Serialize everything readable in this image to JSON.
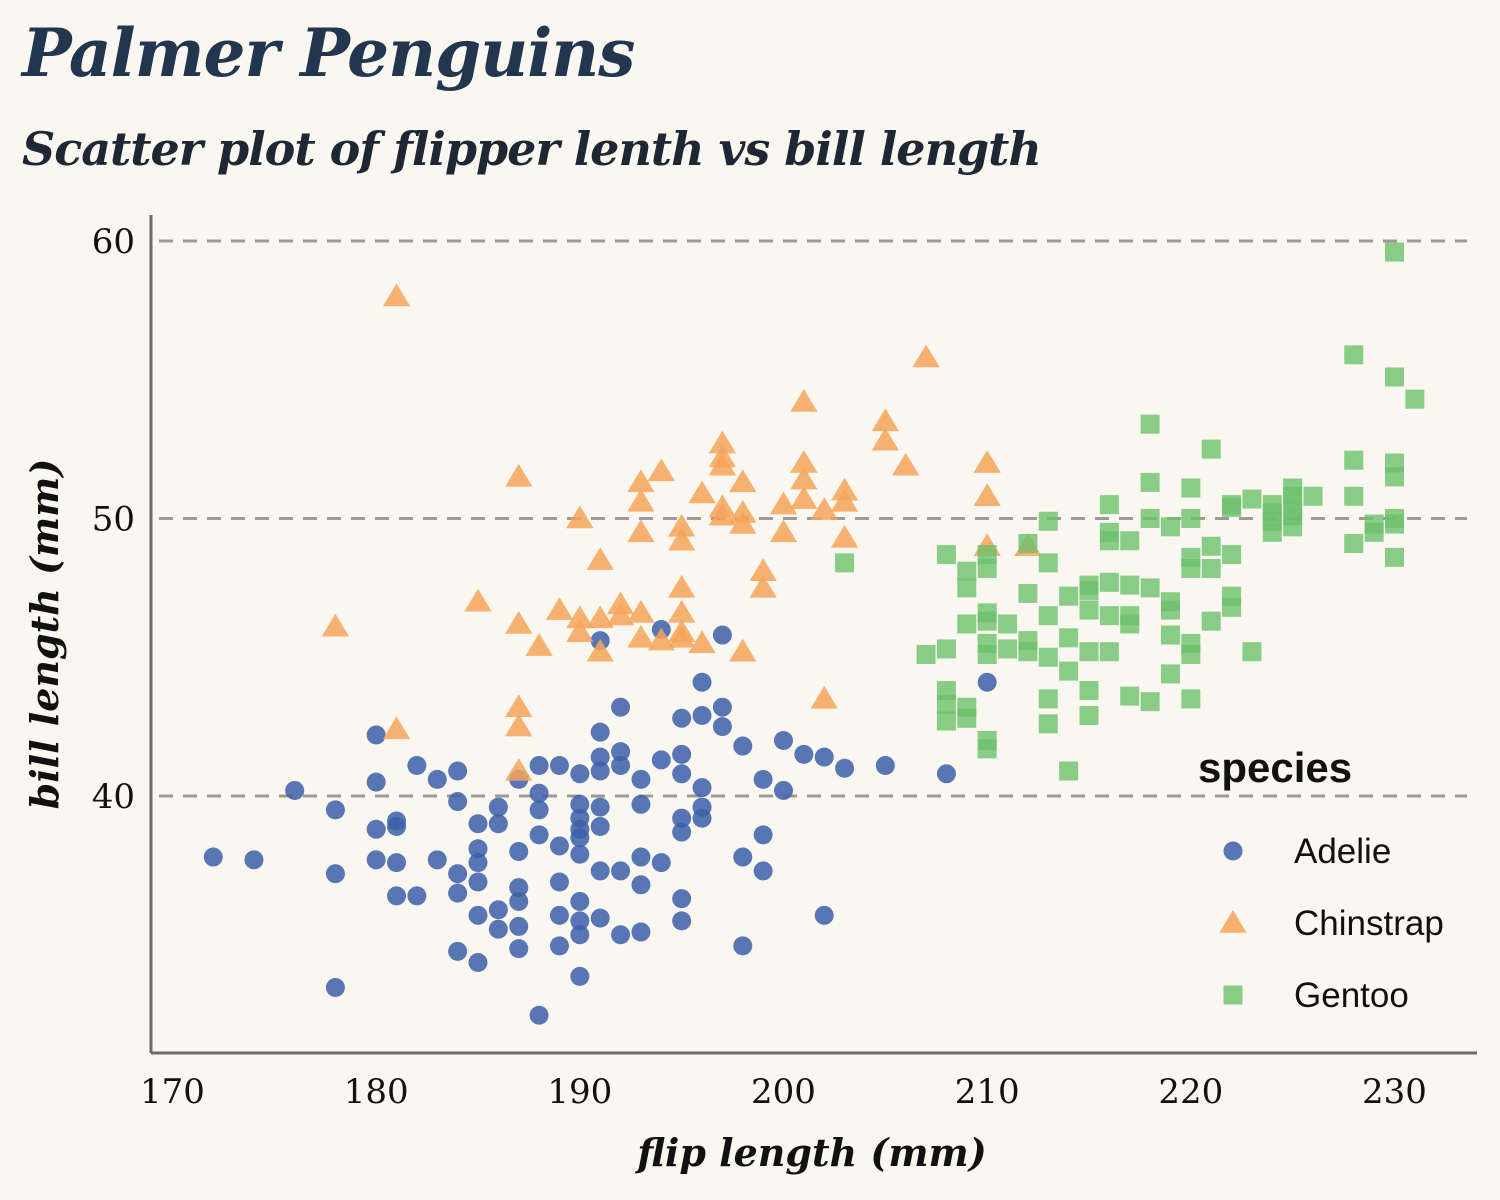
{
  "chart_data": {
    "type": "scatter",
    "title": "Palmer Penguins",
    "subtitle": "Scatter plot of flipper lenth vs bill length",
    "xlabel": "flip length (mm)",
    "ylabel": "bill length (mm)",
    "xlim": [
      167,
      234
    ],
    "ylim": [
      31,
      61
    ],
    "xticks": [
      170,
      180,
      190,
      200,
      210,
      220,
      230
    ],
    "yticks": [
      40,
      50,
      60
    ],
    "grid": "horizontal dashed",
    "legend": {
      "title": "species",
      "position": "bottom-right"
    },
    "series": [
      {
        "name": "Adelie",
        "marker": "circle",
        "color": "#3b5fa8",
        "points": [
          [
            172,
            37.8
          ],
          [
            174,
            37.7
          ],
          [
            176,
            40.2
          ],
          [
            178,
            39.5
          ],
          [
            178,
            37.2
          ],
          [
            178,
            33.1
          ],
          [
            180,
            42.2
          ],
          [
            180,
            40.5
          ],
          [
            180,
            38.8
          ],
          [
            180,
            37.7
          ],
          [
            181,
            39.1
          ],
          [
            181,
            38.9
          ],
          [
            181,
            37.6
          ],
          [
            181,
            36.4
          ],
          [
            182,
            41.1
          ],
          [
            182,
            36.4
          ],
          [
            183,
            40.6
          ],
          [
            183,
            37.7
          ],
          [
            184,
            40.9
          ],
          [
            184,
            39.8
          ],
          [
            184,
            37.2
          ],
          [
            184,
            36.5
          ],
          [
            184,
            34.4
          ],
          [
            185,
            39.0
          ],
          [
            185,
            38.1
          ],
          [
            185,
            37.6
          ],
          [
            185,
            36.9
          ],
          [
            185,
            35.7
          ],
          [
            185,
            34.0
          ],
          [
            186,
            39.6
          ],
          [
            186,
            39.0
          ],
          [
            186,
            35.9
          ],
          [
            186,
            35.2
          ],
          [
            187,
            40.6
          ],
          [
            187,
            38.0
          ],
          [
            187,
            36.7
          ],
          [
            187,
            36.2
          ],
          [
            187,
            35.3
          ],
          [
            187,
            34.5
          ],
          [
            188,
            41.1
          ],
          [
            188,
            40.1
          ],
          [
            188,
            39.5
          ],
          [
            188,
            38.6
          ],
          [
            188,
            32.1
          ],
          [
            189,
            41.1
          ],
          [
            189,
            38.2
          ],
          [
            189,
            36.9
          ],
          [
            189,
            35.7
          ],
          [
            189,
            34.6
          ],
          [
            190,
            40.8
          ],
          [
            190,
            39.7
          ],
          [
            190,
            39.2
          ],
          [
            190,
            38.8
          ],
          [
            190,
            38.5
          ],
          [
            190,
            37.9
          ],
          [
            190,
            36.2
          ],
          [
            190,
            35.5
          ],
          [
            190,
            35.0
          ],
          [
            190,
            33.5
          ],
          [
            191,
            45.6
          ],
          [
            191,
            42.3
          ],
          [
            191,
            41.4
          ],
          [
            191,
            40.9
          ],
          [
            191,
            39.6
          ],
          [
            191,
            38.9
          ],
          [
            191,
            37.3
          ],
          [
            191,
            35.6
          ],
          [
            192,
            43.2
          ],
          [
            192,
            41.6
          ],
          [
            192,
            41.1
          ],
          [
            192,
            37.3
          ],
          [
            192,
            35.0
          ],
          [
            193,
            40.6
          ],
          [
            193,
            39.7
          ],
          [
            193,
            37.8
          ],
          [
            193,
            36.8
          ],
          [
            193,
            35.1
          ],
          [
            194,
            46.0
          ],
          [
            194,
            41.3
          ],
          [
            194,
            37.6
          ],
          [
            195,
            42.8
          ],
          [
            195,
            41.5
          ],
          [
            195,
            40.8
          ],
          [
            195,
            39.2
          ],
          [
            195,
            38.7
          ],
          [
            195,
            36.3
          ],
          [
            195,
            35.5
          ],
          [
            196,
            44.1
          ],
          [
            196,
            42.9
          ],
          [
            196,
            40.3
          ],
          [
            196,
            39.6
          ],
          [
            196,
            39.2
          ],
          [
            197,
            45.8
          ],
          [
            197,
            43.2
          ],
          [
            197,
            42.5
          ],
          [
            198,
            41.8
          ],
          [
            198,
            37.8
          ],
          [
            198,
            34.6
          ],
          [
            199,
            40.6
          ],
          [
            199,
            38.6
          ],
          [
            199,
            37.3
          ],
          [
            200,
            42.0
          ],
          [
            200,
            40.2
          ],
          [
            201,
            41.5
          ],
          [
            202,
            41.4
          ],
          [
            202,
            35.7
          ],
          [
            203,
            41.0
          ],
          [
            205,
            41.1
          ],
          [
            208,
            40.8
          ],
          [
            210,
            44.1
          ]
        ]
      },
      {
        "name": "Chinstrap",
        "marker": "triangle",
        "color": "#f5a55a",
        "points": [
          [
            178,
            46.1
          ],
          [
            181,
            58.0
          ],
          [
            181,
            42.4
          ],
          [
            185,
            47.0
          ],
          [
            187,
            51.5
          ],
          [
            187,
            46.2
          ],
          [
            187,
            43.2
          ],
          [
            187,
            42.5
          ],
          [
            187,
            40.9
          ],
          [
            188,
            45.4
          ],
          [
            189,
            46.7
          ],
          [
            190,
            50.0
          ],
          [
            190,
            46.4
          ],
          [
            190,
            45.9
          ],
          [
            191,
            48.5
          ],
          [
            191,
            46.4
          ],
          [
            191,
            45.2
          ],
          [
            192,
            46.9
          ],
          [
            192,
            46.5
          ],
          [
            193,
            51.3
          ],
          [
            193,
            50.6
          ],
          [
            193,
            49.5
          ],
          [
            193,
            46.6
          ],
          [
            193,
            45.7
          ],
          [
            194,
            51.7
          ],
          [
            194,
            45.6
          ],
          [
            195,
            49.7
          ],
          [
            195,
            49.2
          ],
          [
            195,
            47.5
          ],
          [
            195,
            46.6
          ],
          [
            195,
            45.9
          ],
          [
            195,
            45.7
          ],
          [
            196,
            50.9
          ],
          [
            196,
            45.5
          ],
          [
            197,
            52.7
          ],
          [
            197,
            52.2
          ],
          [
            197,
            51.9
          ],
          [
            197,
            50.1
          ],
          [
            197,
            50.4
          ],
          [
            198,
            51.3
          ],
          [
            198,
            50.2
          ],
          [
            198,
            49.8
          ],
          [
            198,
            45.2
          ],
          [
            199,
            48.1
          ],
          [
            199,
            47.5
          ],
          [
            200,
            50.5
          ],
          [
            200,
            49.5
          ],
          [
            201,
            54.2
          ],
          [
            201,
            52.0
          ],
          [
            201,
            51.4
          ],
          [
            201,
            50.7
          ],
          [
            202,
            50.3
          ],
          [
            202,
            43.5
          ],
          [
            203,
            51.0
          ],
          [
            203,
            50.6
          ],
          [
            203,
            49.3
          ],
          [
            205,
            53.5
          ],
          [
            205,
            52.8
          ],
          [
            206,
            51.9
          ],
          [
            207,
            55.8
          ],
          [
            210,
            52.0
          ],
          [
            210,
            50.8
          ],
          [
            210,
            49.0
          ],
          [
            212,
            49.0
          ]
        ]
      },
      {
        "name": "Gentoo",
        "marker": "square",
        "color": "#6cc16c",
        "points": [
          [
            203,
            48.4
          ],
          [
            207,
            45.1
          ],
          [
            208,
            48.7
          ],
          [
            208,
            45.3
          ],
          [
            208,
            43.8
          ],
          [
            208,
            43.3
          ],
          [
            208,
            42.7
          ],
          [
            209,
            48.1
          ],
          [
            209,
            47.5
          ],
          [
            209,
            46.2
          ],
          [
            209,
            43.2
          ],
          [
            209,
            42.8
          ],
          [
            210,
            48.7
          ],
          [
            210,
            48.2
          ],
          [
            210,
            46.6
          ],
          [
            210,
            46.3
          ],
          [
            210,
            45.5
          ],
          [
            210,
            45.1
          ],
          [
            210,
            41.7
          ],
          [
            210,
            42.0
          ],
          [
            211,
            46.2
          ],
          [
            211,
            45.3
          ],
          [
            212,
            49.1
          ],
          [
            212,
            47.3
          ],
          [
            212,
            45.6
          ],
          [
            212,
            45.2
          ],
          [
            213,
            49.9
          ],
          [
            213,
            48.4
          ],
          [
            213,
            46.5
          ],
          [
            213,
            45.0
          ],
          [
            213,
            43.5
          ],
          [
            213,
            42.6
          ],
          [
            214,
            47.2
          ],
          [
            214,
            45.7
          ],
          [
            214,
            44.5
          ],
          [
            214,
            40.9
          ],
          [
            215,
            47.6
          ],
          [
            215,
            47.4
          ],
          [
            215,
            46.7
          ],
          [
            215,
            45.2
          ],
          [
            215,
            43.8
          ],
          [
            215,
            42.9
          ],
          [
            216,
            50.5
          ],
          [
            216,
            49.5
          ],
          [
            216,
            49.2
          ],
          [
            216,
            47.7
          ],
          [
            216,
            46.5
          ],
          [
            216,
            45.2
          ],
          [
            217,
            49.2
          ],
          [
            217,
            47.6
          ],
          [
            217,
            46.5
          ],
          [
            217,
            46.2
          ],
          [
            217,
            43.6
          ],
          [
            218,
            53.4
          ],
          [
            218,
            51.3
          ],
          [
            218,
            50.0
          ],
          [
            218,
            47.5
          ],
          [
            218,
            43.4
          ],
          [
            219,
            49.7
          ],
          [
            219,
            47.0
          ],
          [
            219,
            46.7
          ],
          [
            219,
            45.8
          ],
          [
            219,
            44.4
          ],
          [
            220,
            51.1
          ],
          [
            220,
            50.0
          ],
          [
            220,
            48.6
          ],
          [
            220,
            48.2
          ],
          [
            220,
            45.5
          ],
          [
            220,
            45.1
          ],
          [
            220,
            43.5
          ],
          [
            221,
            52.5
          ],
          [
            221,
            49.0
          ],
          [
            221,
            48.2
          ],
          [
            221,
            46.3
          ],
          [
            222,
            50.5
          ],
          [
            222,
            50.4
          ],
          [
            222,
            48.7
          ],
          [
            222,
            47.2
          ],
          [
            222,
            46.8
          ],
          [
            223,
            50.7
          ],
          [
            223,
            45.2
          ],
          [
            224,
            50.5
          ],
          [
            224,
            50.2
          ],
          [
            224,
            49.9
          ],
          [
            224,
            49.5
          ],
          [
            225,
            51.1
          ],
          [
            225,
            50.8
          ],
          [
            225,
            50.4
          ],
          [
            225,
            50.1
          ],
          [
            225,
            49.7
          ],
          [
            226,
            50.8
          ],
          [
            228,
            55.9
          ],
          [
            228,
            52.1
          ],
          [
            228,
            50.8
          ],
          [
            228,
            49.1
          ],
          [
            229,
            49.5
          ],
          [
            229,
            49.8
          ],
          [
            230,
            59.6
          ],
          [
            230,
            55.1
          ],
          [
            230,
            52.0
          ],
          [
            230,
            51.5
          ],
          [
            230,
            50.0
          ],
          [
            230,
            49.8
          ],
          [
            230,
            48.6
          ],
          [
            231,
            54.3
          ]
        ]
      }
    ]
  }
}
